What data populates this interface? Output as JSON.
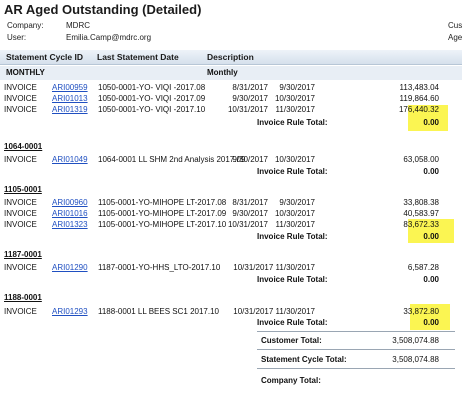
{
  "report": {
    "title": "AR Aged Outstanding (Detailed)",
    "company_label": "Company:",
    "company_value": "MDRC",
    "user_label": "User:",
    "user_value": "Emilia.Camp@mdrc.org",
    "right_label_1": "Cus",
    "right_label_2": "Age"
  },
  "columns": {
    "statement_cycle_id": "Statement Cycle ID",
    "last_statement_date": "Last Statement Date",
    "description": "Description"
  },
  "cycle": {
    "left": "MONTHLY",
    "right": "Monthly"
  },
  "groups": [
    {
      "name": "",
      "rows": [
        {
          "type": "INVOICE",
          "id": "ARI00959",
          "desc": "1050-0001-YO- VIQI -2017.08",
          "d1": "8/31/2017",
          "d2": "9/30/2017",
          "amt": "113,483.04"
        },
        {
          "type": "INVOICE",
          "id": "ARI01013",
          "desc": "1050-0001-YO- VIQI -2017.09",
          "d1": "9/30/2017",
          "d2": "10/30/2017",
          "amt": "119,864.60"
        },
        {
          "type": "INVOICE",
          "id": "ARI01319",
          "desc": "1050-0001-YO- VIQI -2017.10",
          "d1": "10/31/2017",
          "d2": "11/30/2017",
          "amt": "176,440.32"
        }
      ],
      "rule_label": "Invoice Rule Total:",
      "rule_value": "0.00"
    },
    {
      "name": "1064-0001",
      "rows": [
        {
          "type": "INVOICE",
          "id": "ARI01049",
          "desc": "1064-0001 LL SHM 2nd Analysis 2017.09",
          "d1": "9/30/2017",
          "d2": "10/30/2017",
          "amt": "63,058.00"
        }
      ],
      "rule_label": "Invoice Rule Total:",
      "rule_value": "0.00"
    },
    {
      "name": "1105-0001",
      "rows": [
        {
          "type": "INVOICE",
          "id": "ARI00960",
          "desc": "1105-0001-YO-MIHOPE LT-2017.08",
          "d1": "8/31/2017",
          "d2": "9/30/2017",
          "amt": "33,808.38"
        },
        {
          "type": "INVOICE",
          "id": "ARI01016",
          "desc": "1105-0001-YO-MIHOPE LT-2017.09",
          "d1": "9/30/2017",
          "d2": "10/30/2017",
          "amt": "40,583.97"
        },
        {
          "type": "INVOICE",
          "id": "ARI01323",
          "desc": "1105-0001-YO-MIHOPE LT-2017.10",
          "d1": "10/31/2017",
          "d2": "11/30/2017",
          "amt": "83,672.33"
        }
      ],
      "rule_label": "Invoice Rule Total:",
      "rule_value": "0.00"
    },
    {
      "name": "1187-0001",
      "rows": [
        {
          "type": "INVOICE",
          "id": "ARI01290",
          "desc": "1187-0001-YO-HHS_LTO-2017.10",
          "d1": "10/31/2017",
          "d2": "11/30/2017",
          "amt": "6,587.28"
        }
      ],
      "rule_label": "Invoice Rule Total:",
      "rule_value": "0.00"
    },
    {
      "name": "1188-0001",
      "rows": [
        {
          "type": "INVOICE",
          "id": "ARI01293",
          "desc": "1188-0001 LL BEES SC1 2017.10",
          "d1": "10/31/2017",
          "d2": "11/30/2017",
          "amt": "33,872.80"
        }
      ],
      "rule_label": "Invoice Rule Total:",
      "rule_value": "0.00"
    }
  ],
  "totals": {
    "customer_label": "Customer Total:",
    "customer_value": "3,508,074.88",
    "cycle_label": "Statement Cycle Total:",
    "cycle_value": "3,508,074.88",
    "company_label": "Company Total:"
  },
  "colors": {
    "highlight": "#fbf552",
    "link": "#1f4fc1",
    "header_bar": "#d5e0ec"
  }
}
